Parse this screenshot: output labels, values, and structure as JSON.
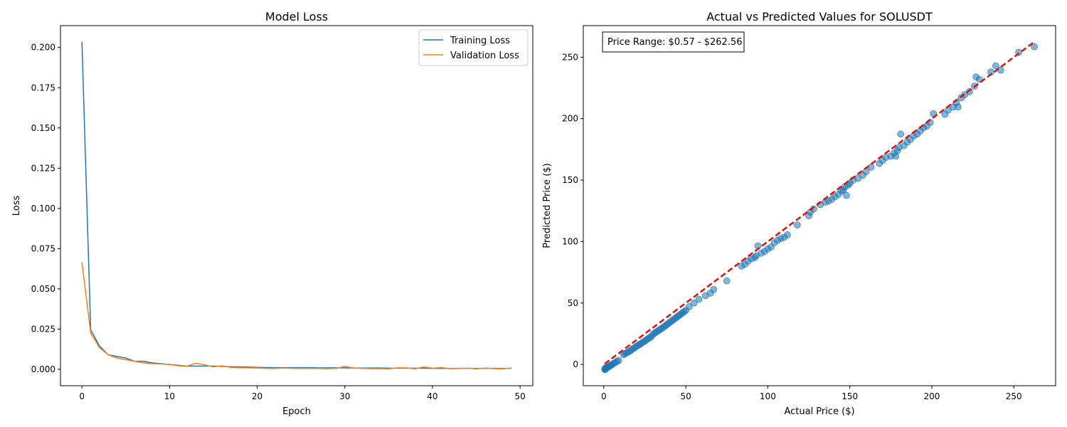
{
  "chart_data": [
    {
      "type": "line",
      "title": "Model Loss",
      "xlabel": "Epoch",
      "ylabel": "Loss",
      "xlim": [
        -2.45,
        51.45
      ],
      "ylim": [
        -0.0102,
        0.2136
      ],
      "xticks": [
        0,
        10,
        20,
        30,
        40,
        50
      ],
      "yticks": [
        0.0,
        0.025,
        0.05,
        0.075,
        0.1,
        0.125,
        0.15,
        0.175,
        0.2
      ],
      "ytick_labels": [
        "0.000",
        "0.025",
        "0.050",
        "0.075",
        "0.100",
        "0.125",
        "0.150",
        "0.175",
        "0.200"
      ],
      "grid": false,
      "legend_position": "top-right",
      "series": [
        {
          "name": "Training Loss",
          "color": "#1f77b4",
          "x": [
            0,
            1,
            2,
            3,
            4,
            5,
            6,
            7,
            8,
            9,
            10,
            11,
            12,
            13,
            14,
            15,
            16,
            17,
            18,
            19,
            20,
            21,
            22,
            23,
            24,
            25,
            26,
            27,
            28,
            29,
            30,
            31,
            32,
            33,
            34,
            35,
            36,
            37,
            38,
            39,
            40,
            41,
            42,
            43,
            44,
            45,
            46,
            47,
            48,
            49
          ],
          "y": [
            0.2035,
            0.0245,
            0.0145,
            0.009,
            0.008,
            0.007,
            0.005,
            0.005,
            0.004,
            0.0035,
            0.003,
            0.0025,
            0.002,
            0.002,
            0.002,
            0.002,
            0.0018,
            0.0016,
            0.0015,
            0.0014,
            0.0012,
            0.0011,
            0.001,
            0.001,
            0.001,
            0.001,
            0.001,
            0.0009,
            0.0009,
            0.0009,
            0.0009,
            0.0008,
            0.0008,
            0.0008,
            0.0008,
            0.0007,
            0.0007,
            0.0007,
            0.0007,
            0.0007,
            0.0006,
            0.0006,
            0.0006,
            0.0006,
            0.0006,
            0.0006,
            0.0006,
            0.0006,
            0.0006,
            0.0006
          ]
        },
        {
          "name": "Validation Loss",
          "color": "#ff7f0e",
          "x": [
            0,
            1,
            2,
            3,
            4,
            5,
            6,
            7,
            8,
            9,
            10,
            11,
            12,
            13,
            14,
            15,
            16,
            17,
            18,
            19,
            20,
            21,
            22,
            23,
            24,
            25,
            26,
            27,
            28,
            29,
            30,
            31,
            32,
            33,
            34,
            35,
            36,
            37,
            38,
            39,
            40,
            41,
            42,
            43,
            44,
            45,
            46,
            47,
            48,
            49
          ],
          "y": [
            0.0665,
            0.0225,
            0.0135,
            0.009,
            0.007,
            0.006,
            0.005,
            0.004,
            0.0035,
            0.0033,
            0.003,
            0.0022,
            0.002,
            0.0038,
            0.0028,
            0.0015,
            0.0022,
            0.0012,
            0.001,
            0.0009,
            0.0008,
            0.0006,
            0.0005,
            0.0008,
            0.0006,
            0.0005,
            0.0006,
            0.0005,
            0.0004,
            0.0006,
            0.0018,
            0.0008,
            0.0006,
            0.0004,
            0.0004,
            0.0003,
            0.0009,
            0.0009,
            0.0003,
            0.0015,
            0.0007,
            0.0011,
            0.0004,
            0.0005,
            0.0007,
            0.0003,
            0.0008,
            0.0004,
            0.0003,
            0.0008
          ]
        }
      ]
    },
    {
      "type": "scatter",
      "title": "Actual vs Predicted Values for SOLUSDT",
      "xlabel": "Actual Price ($)",
      "ylabel": "Predicted Price ($)",
      "xlim": [
        -12.5,
        275.5
      ],
      "ylim": [
        -17.3,
        275.7
      ],
      "xticks": [
        0,
        50,
        100,
        150,
        200,
        250
      ],
      "yticks": [
        0,
        50,
        100,
        150,
        200,
        250
      ],
      "grid": false,
      "annotation": "Price Range: $0.57 - $262.56",
      "annotation_position": "top-left",
      "point_color": "#1f77b4",
      "ideal_line": {
        "x": [
          0.57,
          262.56
        ],
        "y": [
          0.57,
          262.56
        ],
        "color": "#dd1111",
        "style": "dashed"
      },
      "points": [
        [
          0.6,
          -3.8
        ],
        [
          0.8,
          -4.2
        ],
        [
          1.0,
          -3.0
        ],
        [
          1.2,
          -3.5
        ],
        [
          1.5,
          -2.5
        ],
        [
          2.0,
          -2.8
        ],
        [
          2.5,
          -2.0
        ],
        [
          3.0,
          -1.8
        ],
        [
          3.5,
          -1.2
        ],
        [
          4.0,
          -1.0
        ],
        [
          4.5,
          -0.5
        ],
        [
          5.0,
          0.0
        ],
        [
          6.0,
          0.8
        ],
        [
          7.0,
          1.5
        ],
        [
          8.0,
          2.5
        ],
        [
          9.0,
          3.2
        ],
        [
          12.0,
          8.0
        ],
        [
          13.0,
          8.8
        ],
        [
          14.0,
          9.5
        ],
        [
          15.0,
          10.3
        ],
        [
          16.0,
          11.0
        ],
        [
          17.0,
          12.0
        ],
        [
          18.0,
          13.0
        ],
        [
          19.0,
          13.8
        ],
        [
          20.0,
          14.8
        ],
        [
          21.0,
          15.6
        ],
        [
          22.0,
          16.5
        ],
        [
          23.0,
          17.3
        ],
        [
          24.0,
          18.2
        ],
        [
          25.0,
          19.0
        ],
        [
          26.0,
          20.0
        ],
        [
          27.0,
          21.0
        ],
        [
          28.0,
          21.8
        ],
        [
          29.0,
          22.8
        ],
        [
          30.0,
          24.5
        ],
        [
          31.0,
          25.5
        ],
        [
          32.0,
          26.5
        ],
        [
          33.0,
          27.3
        ],
        [
          34.0,
          28.2
        ],
        [
          35.0,
          29.0
        ],
        [
          36.0,
          30.0
        ],
        [
          37.0,
          31.0
        ],
        [
          38.0,
          32.0
        ],
        [
          39.0,
          33.0
        ],
        [
          40.0,
          34.0
        ],
        [
          41.0,
          35.0
        ],
        [
          42.0,
          36.0
        ],
        [
          43.0,
          37.0
        ],
        [
          44.0,
          38.0
        ],
        [
          45.0,
          39.0
        ],
        [
          46.0,
          40.0
        ],
        [
          47.0,
          41.0
        ],
        [
          48.0,
          42.0
        ],
        [
          49.0,
          43.0
        ],
        [
          50.0,
          44.0
        ],
        [
          52.0,
          47.0
        ],
        [
          55.0,
          50.0
        ],
        [
          58.0,
          53.0
        ],
        [
          62.0,
          56.0
        ],
        [
          65.0,
          58.0
        ],
        [
          67.0,
          61.0
        ],
        [
          75.0,
          68.0
        ],
        [
          84.0,
          80.0
        ],
        [
          86.0,
          81.5
        ],
        [
          88.0,
          84.0
        ],
        [
          90.0,
          86.0
        ],
        [
          92.0,
          87.0
        ],
        [
          93.0,
          88.5
        ],
        [
          94.0,
          96.5
        ],
        [
          96.0,
          90.5
        ],
        [
          98.0,
          92.0
        ],
        [
          100.0,
          94.0
        ],
        [
          102.0,
          95.5
        ],
        [
          104.0,
          99.0
        ],
        [
          106.0,
          101.0
        ],
        [
          108.0,
          102.5
        ],
        [
          110.0,
          103.5
        ],
        [
          112.0,
          105.5
        ],
        [
          118.0,
          113.5
        ],
        [
          125.0,
          121.0
        ],
        [
          126.0,
          124.0
        ],
        [
          128.0,
          126.5
        ],
        [
          132.0,
          130.0
        ],
        [
          135.0,
          132.0
        ],
        [
          137.0,
          133.0
        ],
        [
          139.0,
          134.5
        ],
        [
          141.0,
          136.5
        ],
        [
          143.0,
          138.5
        ],
        [
          145.0,
          141.0
        ],
        [
          146.0,
          142.0
        ],
        [
          147.0,
          144.5
        ],
        [
          148.0,
          137.5
        ],
        [
          149.0,
          146.0
        ],
        [
          150.0,
          147.5
        ],
        [
          152.0,
          150.0
        ],
        [
          155.0,
          151.5
        ],
        [
          158.0,
          154.0
        ],
        [
          160.0,
          157.0
        ],
        [
          163.0,
          160.5
        ],
        [
          168.0,
          163.5
        ],
        [
          170.0,
          166.0
        ],
        [
          172.0,
          168.5
        ],
        [
          175.0,
          169.5
        ],
        [
          177.0,
          172.0
        ],
        [
          178.0,
          169.5
        ],
        [
          179.0,
          174.0
        ],
        [
          180.0,
          176.5
        ],
        [
          181.0,
          187.5
        ],
        [
          183.0,
          178.0
        ],
        [
          185.0,
          181.0
        ],
        [
          187.0,
          183.0
        ],
        [
          189.0,
          186.0
        ],
        [
          191.0,
          187.5
        ],
        [
          193.0,
          190.0
        ],
        [
          195.0,
          192.5
        ],
        [
          197.0,
          194.0
        ],
        [
          199.0,
          197.0
        ],
        [
          201.0,
          204.0
        ],
        [
          208.0,
          203.5
        ],
        [
          210.0,
          207.0
        ],
        [
          213.0,
          209.5
        ],
        [
          215.0,
          213.0
        ],
        [
          216.0,
          209.5
        ],
        [
          218.0,
          217.0
        ],
        [
          220.0,
          219.5
        ],
        [
          223.0,
          222.0
        ],
        [
          226.0,
          226.5
        ],
        [
          227.0,
          234.0
        ],
        [
          229.0,
          232.0
        ],
        [
          236.0,
          238.0
        ],
        [
          239.0,
          243.0
        ],
        [
          242.0,
          239.5
        ],
        [
          253.0,
          254.0
        ],
        [
          262.5,
          258.5
        ]
      ]
    }
  ]
}
